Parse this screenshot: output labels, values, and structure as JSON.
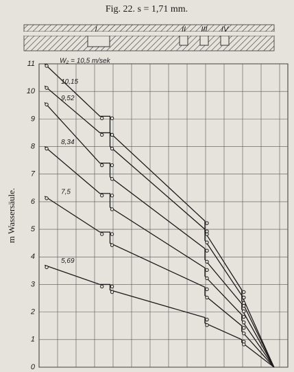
{
  "chart_data": {
    "type": "line",
    "title": "Fig. 22.  s = 1,71 mm.",
    "y_label": "m Wassersäule.",
    "diagram_labels": [
      "I",
      "II",
      "III",
      "IV"
    ],
    "xlim": [
      0,
      13.5
    ],
    "ylim": [
      0,
      11
    ],
    "yticks": [
      0,
      1,
      2,
      3,
      4,
      5,
      6,
      7,
      8,
      9,
      10,
      11
    ],
    "grid": true,
    "x": [
      0.3,
      3.3,
      3.85,
      3.85,
      9.0,
      9.0,
      11.0,
      11.0,
      12.75
    ],
    "series": [
      {
        "name": "W₂ = 10,5 m/sek",
        "color": "#1a1a1a",
        "values": [
          11.0,
          9.1,
          9.1,
          8.5,
          5.3,
          4.9,
          2.8,
          2.6,
          0
        ]
      },
      {
        "name": "10,15",
        "color": "#1a1a1a",
        "values": [
          10.2,
          8.5,
          8.5,
          8.0,
          5.0,
          4.6,
          2.6,
          2.4,
          0
        ]
      },
      {
        "name": "9,52",
        "color": "#1a1a1a",
        "values": [
          9.6,
          7.4,
          7.4,
          6.9,
          4.3,
          3.9,
          2.3,
          2.1,
          0
        ]
      },
      {
        "name": "8,34",
        "color": "#1a1a1a",
        "values": [
          8.0,
          6.3,
          6.3,
          5.8,
          3.6,
          3.3,
          1.9,
          1.7,
          0
        ]
      },
      {
        "name": "7,5",
        "color": "#1a1a1a",
        "values": [
          6.2,
          4.9,
          4.9,
          4.5,
          2.9,
          2.6,
          1.5,
          1.3,
          0
        ]
      },
      {
        "name": "5,69",
        "color": "#1a1a1a",
        "values": [
          3.7,
          3.0,
          3.0,
          2.8,
          1.8,
          1.6,
          1.0,
          0.9,
          0
        ]
      }
    ]
  }
}
